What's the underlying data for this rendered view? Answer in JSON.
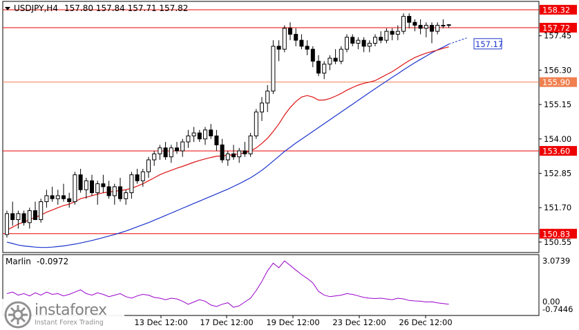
{
  "header": {
    "symbol": "USDJPY,H4",
    "ohlc": "157.80 157.84 157.71 157.82"
  },
  "indicator": {
    "name": "Marlin",
    "value": "-0.0972",
    "scale_top": "3.0739",
    "scale_zero": "0.00",
    "scale_bottom": "-0.7446",
    "color": "#9900cc"
  },
  "x_axis": {
    "labels": [
      "13 Dec 12:00",
      "17 Dec 12:00",
      "19 Dec 12:00",
      "23 Dec 12:00",
      "26 Dec 12:00"
    ]
  },
  "price_levels": [
    {
      "label": "158.32",
      "value": 158.32,
      "color": "#ee0000",
      "style": "solid"
    },
    {
      "label": "157.72",
      "value": 157.72,
      "color": "#ee0000",
      "style": "solid"
    },
    {
      "label": "155.90",
      "value": 155.9,
      "color": "#f08050",
      "style": "solid"
    },
    {
      "label": "153.60",
      "value": 153.6,
      "color": "#ee0000",
      "style": "solid"
    },
    {
      "label": "150.83",
      "value": 150.83,
      "color": "#ee0000",
      "style": "solid"
    }
  ],
  "blue_label": {
    "label": "157.17",
    "value": 157.17,
    "color": "#1a33cc"
  },
  "chart_data": {
    "type": "candlestick",
    "title": "USDJPY,H4",
    "ylim": [
      150.2,
      158.6
    ],
    "y_ticks": [
      "157.45",
      "156.30",
      "155.15",
      "154.00",
      "152.85",
      "151.70",
      "150.55"
    ],
    "y_tick_values": [
      157.45,
      156.3,
      155.15,
      154.0,
      152.85,
      151.7,
      150.55
    ],
    "candles": [
      [
        150.8,
        151.6,
        150.7,
        151.5
      ],
      [
        151.5,
        151.9,
        151.1,
        151.3
      ],
      [
        151.3,
        151.6,
        151.0,
        151.5
      ],
      [
        151.5,
        151.6,
        151.1,
        151.2
      ],
      [
        151.2,
        151.7,
        151.0,
        151.6
      ],
      [
        151.6,
        151.9,
        151.3,
        151.3
      ],
      [
        151.3,
        152.0,
        151.2,
        151.9
      ],
      [
        151.9,
        152.3,
        151.7,
        152.1
      ],
      [
        152.1,
        152.4,
        151.9,
        152.0
      ],
      [
        152.0,
        152.3,
        151.8,
        152.1
      ],
      [
        152.1,
        152.5,
        151.9,
        152.0
      ],
      [
        152.0,
        152.2,
        151.7,
        151.9
      ],
      [
        151.9,
        152.9,
        151.8,
        152.8
      ],
      [
        152.8,
        153.0,
        152.2,
        152.3
      ],
      [
        152.3,
        152.7,
        152.0,
        152.6
      ],
      [
        152.6,
        152.8,
        152.1,
        152.2
      ],
      [
        152.2,
        152.6,
        151.8,
        152.5
      ],
      [
        152.5,
        152.8,
        152.2,
        152.4
      ],
      [
        152.4,
        152.6,
        152.0,
        152.1
      ],
      [
        152.1,
        152.5,
        151.8,
        152.4
      ],
      [
        152.4,
        152.7,
        151.9,
        152.0
      ],
      [
        152.0,
        152.3,
        151.8,
        152.2
      ],
      [
        152.2,
        152.9,
        152.0,
        152.8
      ],
      [
        152.8,
        153.0,
        152.5,
        152.6
      ],
      [
        152.6,
        153.0,
        152.4,
        152.9
      ],
      [
        152.9,
        153.4,
        152.7,
        153.3
      ],
      [
        153.3,
        153.6,
        153.1,
        153.5
      ],
      [
        153.5,
        153.8,
        153.3,
        153.7
      ],
      [
        153.7,
        153.9,
        153.3,
        153.4
      ],
      [
        153.4,
        153.8,
        153.2,
        153.7
      ],
      [
        153.7,
        153.9,
        153.5,
        153.6
      ],
      [
        153.6,
        154.0,
        153.4,
        153.9
      ],
      [
        153.9,
        154.3,
        153.7,
        154.1
      ],
      [
        154.1,
        154.4,
        153.9,
        154.2
      ],
      [
        154.2,
        154.3,
        153.9,
        154.0
      ],
      [
        154.0,
        154.4,
        153.8,
        154.3
      ],
      [
        154.3,
        154.5,
        154.0,
        154.1
      ],
      [
        154.1,
        154.3,
        153.6,
        153.8
      ],
      [
        153.8,
        154.0,
        153.2,
        153.3
      ],
      [
        153.3,
        153.6,
        153.1,
        153.5
      ],
      [
        153.5,
        153.8,
        153.3,
        153.4
      ],
      [
        153.4,
        153.7,
        153.2,
        153.6
      ],
      [
        153.6,
        153.9,
        153.4,
        153.5
      ],
      [
        153.5,
        154.2,
        153.4,
        154.1
      ],
      [
        154.1,
        155.0,
        154.0,
        154.9
      ],
      [
        154.9,
        155.4,
        154.6,
        155.2
      ],
      [
        155.2,
        155.8,
        154.9,
        155.6
      ],
      [
        155.6,
        157.3,
        155.5,
        157.1
      ],
      [
        157.1,
        157.3,
        156.6,
        157.0
      ],
      [
        157.0,
        157.8,
        156.9,
        157.7
      ],
      [
        157.7,
        157.9,
        157.3,
        157.5
      ],
      [
        157.5,
        157.7,
        157.1,
        157.3
      ],
      [
        157.3,
        157.5,
        157.0,
        157.1
      ],
      [
        157.1,
        157.3,
        156.8,
        157.0
      ],
      [
        157.0,
        157.1,
        156.4,
        156.6
      ],
      [
        156.6,
        156.8,
        156.1,
        156.2
      ],
      [
        156.2,
        156.6,
        156.0,
        156.5
      ],
      [
        156.5,
        156.8,
        156.3,
        156.7
      ],
      [
        156.7,
        157.0,
        156.5,
        156.6
      ],
      [
        156.6,
        157.1,
        156.5,
        157.0
      ],
      [
        157.0,
        157.5,
        156.9,
        157.4
      ],
      [
        157.4,
        157.5,
        157.1,
        157.2
      ],
      [
        157.2,
        157.4,
        157.0,
        157.3
      ],
      [
        157.3,
        157.4,
        156.9,
        157.1
      ],
      [
        157.1,
        157.3,
        156.9,
        157.2
      ],
      [
        157.2,
        157.5,
        157.1,
        157.4
      ],
      [
        157.4,
        157.6,
        157.2,
        157.3
      ],
      [
        157.3,
        157.7,
        157.2,
        157.6
      ],
      [
        157.6,
        157.7,
        157.3,
        157.5
      ],
      [
        157.5,
        157.8,
        157.3,
        157.6
      ],
      [
        157.6,
        158.2,
        157.5,
        158.1
      ],
      [
        158.1,
        158.2,
        157.7,
        157.9
      ],
      [
        157.9,
        158.0,
        157.6,
        157.8
      ],
      [
        157.8,
        158.0,
        157.5,
        157.7
      ],
      [
        157.7,
        157.9,
        157.4,
        157.8
      ],
      [
        157.8,
        157.9,
        157.2,
        157.6
      ],
      [
        157.6,
        157.9,
        157.5,
        157.8
      ],
      [
        157.8,
        158.0,
        157.7,
        157.8
      ],
      [
        157.8,
        157.84,
        157.71,
        157.82
      ]
    ],
    "red_ma": [
      150.95,
      151.05,
      151.15,
      151.22,
      151.3,
      151.38,
      151.45,
      151.55,
      151.62,
      151.7,
      151.77,
      151.82,
      151.9,
      152.0,
      152.05,
      152.1,
      152.15,
      152.2,
      152.22,
      152.25,
      152.27,
      152.3,
      152.35,
      152.42,
      152.5,
      152.6,
      152.7,
      152.8,
      152.88,
      152.95,
      153.02,
      153.08,
      153.15,
      153.22,
      153.28,
      153.33,
      153.38,
      153.42,
      153.43,
      153.45,
      153.47,
      153.5,
      153.53,
      153.6,
      153.7,
      153.85,
      154.02,
      154.25,
      154.5,
      154.8,
      155.05,
      155.25,
      155.4,
      155.45,
      155.4,
      155.3,
      155.3,
      155.35,
      155.43,
      155.52,
      155.63,
      155.72,
      155.8,
      155.86,
      155.9,
      155.95,
      156.05,
      156.15,
      156.25,
      156.37,
      156.5,
      156.62,
      156.72,
      156.8,
      156.87,
      156.92,
      156.97,
      157.03,
      157.08
    ],
    "blue_ma": [
      150.55,
      150.5,
      150.45,
      150.42,
      150.4,
      150.38,
      150.37,
      150.37,
      150.38,
      150.4,
      150.42,
      150.45,
      150.48,
      150.52,
      150.56,
      150.6,
      150.65,
      150.7,
      150.75,
      150.8,
      150.86,
      150.92,
      150.99,
      151.06,
      151.13,
      151.2,
      151.28,
      151.36,
      151.44,
      151.52,
      151.6,
      151.68,
      151.76,
      151.84,
      151.92,
      152.0,
      152.08,
      152.16,
      152.24,
      152.32,
      152.41,
      152.5,
      152.6,
      152.7,
      152.82,
      152.95,
      153.1,
      153.26,
      153.42,
      153.58,
      153.72,
      153.86,
      153.99,
      154.12,
      154.25,
      154.38,
      154.51,
      154.64,
      154.77,
      154.9,
      155.03,
      155.16,
      155.29,
      155.42,
      155.55,
      155.68,
      155.81,
      155.93,
      156.06,
      156.18,
      156.31,
      156.43,
      156.55,
      156.66,
      156.77,
      156.88,
      156.98,
      157.07,
      157.17
    ],
    "oscillator": [
      0.6,
      0.7,
      0.5,
      0.6,
      0.45,
      0.65,
      0.5,
      0.7,
      0.55,
      0.6,
      0.45,
      0.55,
      0.7,
      0.85,
      0.6,
      0.5,
      0.65,
      0.55,
      0.4,
      0.5,
      0.6,
      0.4,
      0.3,
      0.45,
      0.55,
      0.5,
      0.35,
      0.3,
      0.2,
      0.3,
      0.25,
      0.1,
      -0.1,
      0.05,
      0.2,
      0.1,
      -0.15,
      -0.25,
      -0.1,
      0.0,
      -0.3,
      -0.2,
      0.05,
      0.3,
      0.8,
      1.4,
      2.1,
      2.6,
      2.3,
      2.75,
      2.45,
      2.15,
      1.85,
      1.6,
      1.3,
      0.75,
      0.5,
      0.4,
      0.45,
      0.5,
      0.6,
      0.55,
      0.45,
      0.35,
      0.3,
      0.28,
      0.3,
      0.25,
      0.2,
      0.3,
      0.25,
      0.15,
      0.12,
      0.1,
      0.05,
      0.06,
      -0.01,
      -0.05,
      -0.0972
    ],
    "osc_ylim": [
      -0.7446,
      3.0739
    ]
  }
}
